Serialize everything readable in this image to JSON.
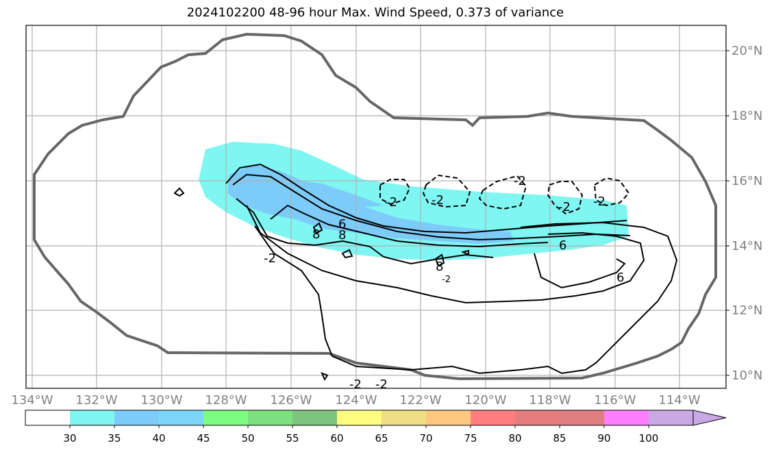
{
  "title": "2024102200 48-96 hour Max. Wind Speed, 0.373 of variance",
  "map": {
    "lon_ticks": [
      "134°W",
      "132°W",
      "130°W",
      "128°W",
      "126°W",
      "124°W",
      "122°W",
      "120°W",
      "118°W",
      "116°W",
      "114°W"
    ],
    "lat_ticks": [
      "20°N",
      "18°N",
      "16°N",
      "14°N",
      "12°N",
      "10°N"
    ],
    "lon_range": [
      -134.0,
      -112.5
    ],
    "lat_range": [
      9.6,
      20.8
    ]
  },
  "contour_labels": [
    "6",
    "8",
    "8",
    "6",
    "6",
    "8",
    "-2",
    "-2",
    "-2",
    "-2",
    "-2",
    "-2",
    "-2",
    "-2",
    "-2"
  ],
  "colorbar": {
    "tick_labels": [
      "30",
      "35",
      "40",
      "45",
      "50",
      "55",
      "60",
      "65",
      "70",
      "75",
      "80",
      "85",
      "90",
      "100"
    ],
    "colors": [
      "#ffffff",
      "#7ff6f2",
      "#7dcbf8",
      "#7cd5fb",
      "#7dfd7f",
      "#7de07e",
      "#7ec37e",
      "#fefc7f",
      "#f0de84",
      "#fec67f",
      "#fe7d7e",
      "#e57d7e",
      "#df7d7f",
      "#fe7ffe",
      "#c9a8e4"
    ]
  }
}
